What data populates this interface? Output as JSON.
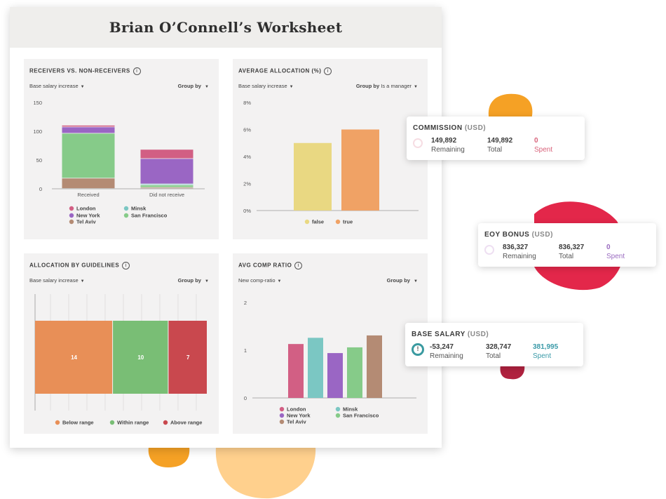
{
  "worksheet": {
    "title": "Brian O’Connell’s Worksheet"
  },
  "panels": {
    "receivers": {
      "title": "RECEIVERS VS. NON-RECEIVERS",
      "select": "Base salary increase",
      "groupby_label": "Group by",
      "groupby_value": ""
    },
    "average_allocation": {
      "title": "AVERAGE ALLOCATION (%)",
      "select": "Base salary increase",
      "groupby_label": "Group by",
      "groupby_value": "Is a manager"
    },
    "guidelines": {
      "title": "ALLOCATION BY GUIDELINES",
      "select": "Base salary increase",
      "groupby_label": "Group by",
      "groupby_value": ""
    },
    "comp_ratio": {
      "title": "AVG COMP RATIO",
      "select": "New comp-ratio",
      "groupby_label": "Group by",
      "groupby_value": ""
    }
  },
  "cards": {
    "commission": {
      "title": "COMMISSION",
      "unit": "(USD)",
      "remaining": "149,892",
      "remaining_label": "Remaining",
      "total": "149,892",
      "total_label": "Total",
      "spent": "0",
      "spent_label": "Spent",
      "ring_color": "#f6dde3",
      "spent_color": "#d8627a"
    },
    "eoy_bonus": {
      "title": "EOY BONUS",
      "unit": "(USD)",
      "remaining": "836,327",
      "remaining_label": "Remaining",
      "total": "836,327",
      "total_label": "Total",
      "spent": "0",
      "spent_label": "Spent",
      "ring_color": "#eedff2",
      "spent_color": "#9a6bc0"
    },
    "base_salary": {
      "title": "BASE SALARY",
      "unit": "(USD)",
      "remaining": "-53,247",
      "remaining_label": "Remaining",
      "total": "328,747",
      "total_label": "Total",
      "spent": "381,995",
      "spent_label": "Spent",
      "ring_color": "#3a9aa0",
      "spent_color": "#3a9aa8",
      "icon": "exclamation"
    }
  },
  "chart_data": [
    {
      "type": "bar",
      "title": "RECEIVERS VS. NON-RECEIVERS",
      "stacked": true,
      "categories": [
        "Received",
        "Did not receive"
      ],
      "series": [
        {
          "name": "Tel Aviv",
          "color": "#b48b74",
          "values": [
            18,
            2
          ]
        },
        {
          "name": "San Francisco",
          "color": "#86cb89",
          "values": [
            78,
            4
          ]
        },
        {
          "name": "Minsk",
          "color": "#7bc7c3",
          "values": [
            0,
            2
          ]
        },
        {
          "name": "New York",
          "color": "#9a66c4",
          "values": [
            11,
            44
          ]
        },
        {
          "name": "London",
          "color": "#d25f84",
          "values": [
            3,
            16
          ]
        }
      ],
      "legend": [
        "London",
        "Minsk",
        "New York",
        "San Francisco",
        "Tel Aviv"
      ],
      "ylim": [
        0,
        150
      ],
      "yticks": [
        "0",
        "50",
        "100",
        "150"
      ],
      "legend_position": "bottom"
    },
    {
      "type": "bar",
      "title": "AVERAGE ALLOCATION (%)",
      "categories": [
        "false",
        "true"
      ],
      "values": [
        5,
        6
      ],
      "colors": [
        "#e9d882",
        "#f0a265"
      ],
      "ylim": [
        0,
        8
      ],
      "yticks": [
        "0%",
        "2%",
        "4%",
        "6%",
        "8%"
      ],
      "legend": [
        "false",
        "true"
      ],
      "legend_position": "bottom"
    },
    {
      "type": "bar",
      "title": "ALLOCATION BY GUIDELINES",
      "stacked": true,
      "orientation": "horizontal",
      "segments": [
        {
          "name": "Below range",
          "value": 14,
          "label": "14",
          "color": "#e88f57"
        },
        {
          "name": "Within range",
          "value": 10,
          "label": "10",
          "color": "#79be75"
        },
        {
          "name": "Above range",
          "value": 7,
          "label": "7",
          "color": "#c9484e"
        }
      ],
      "legend_position": "bottom"
    },
    {
      "type": "bar",
      "title": "AVG COMP RATIO",
      "categories": [
        "London",
        "Minsk",
        "New York",
        "San Francisco",
        "Tel Aviv"
      ],
      "values": [
        1.13,
        1.26,
        0.94,
        1.06,
        1.31
      ],
      "colors": [
        "#d25f84",
        "#7bc7c3",
        "#9a66c4",
        "#86cb89",
        "#b48b74"
      ],
      "ylim": [
        0,
        2
      ],
      "yticks": [
        "0",
        "1",
        "2"
      ],
      "legend": [
        "London",
        "Minsk",
        "New York",
        "San Francisco",
        "Tel Aviv"
      ],
      "legend_position": "bottom"
    }
  ]
}
